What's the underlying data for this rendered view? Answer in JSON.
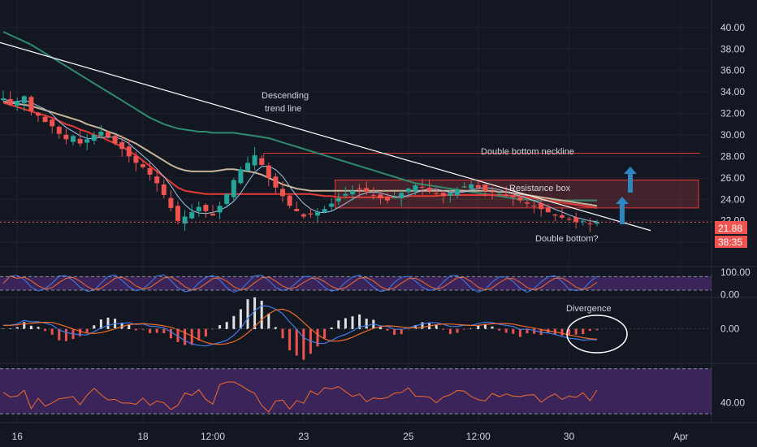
{
  "chart_data": {
    "type": "candlestick",
    "main_panel": {
      "ylim": [
        18.5,
        41.5
      ],
      "yticks": [
        "20.00",
        "22.00",
        "24.00",
        "26.00",
        "28.00",
        "30.00",
        "32.00",
        "34.00",
        "36.00",
        "38.00",
        "40.00"
      ],
      "last_price": "21.88",
      "countdown": "38:35",
      "annotations": {
        "descending_line1": "Descending",
        "descending_line2": "trend line",
        "neckline": "Double bottom neckline",
        "resistance": "Resistance box",
        "double_bottom": "Double bottom?"
      },
      "neckline_price": 28.3,
      "resistance_box": [
        23.2,
        25.8
      ],
      "trend_line": [
        [
          0,
          38.6
        ],
        [
          105,
          21.1
        ]
      ],
      "close": [
        33.4,
        32.8,
        33.1,
        33.6,
        32.2,
        31.8,
        31.2,
        30.8,
        30.1,
        29.6,
        29.9,
        29.2,
        29.6,
        30.0,
        30.3,
        29.8,
        29.2,
        28.7,
        28.0,
        27.4,
        27.0,
        26.3,
        25.5,
        24.4,
        23.2,
        22.0,
        22.4,
        22.8,
        23.3,
        22.9,
        22.5,
        23.4,
        24.5,
        25.8,
        26.8,
        27.4,
        28.1,
        27.2,
        26.0,
        25.1,
        24.3,
        23.4,
        22.9,
        22.4,
        22.6,
        22.8,
        23.1,
        23.6,
        24.1,
        24.5,
        24.8,
        25.0,
        24.7,
        24.4,
        24.1,
        23.9,
        24.2,
        24.6,
        25.0,
        25.3,
        25.1,
        24.8,
        24.5,
        24.3,
        24.6,
        24.9,
        25.2,
        25.4,
        25.1,
        24.8,
        24.7,
        24.5,
        24.3,
        24.2,
        23.9,
        23.6,
        23.4,
        23.1,
        22.8,
        22.5,
        22.3,
        22.1,
        21.9,
        22.0,
        21.7,
        21.9
      ],
      "ma_red": [
        33.0,
        32.8,
        32.6,
        32.4,
        32.2,
        32.0,
        31.8,
        31.6,
        31.3,
        31.0,
        30.8,
        30.5,
        30.3,
        30.0,
        29.8,
        29.5,
        29.2,
        28.9,
        28.5,
        28.1,
        27.6,
        27.1,
        26.6,
        26.1,
        25.6,
        25.1,
        24.8,
        24.7,
        24.6,
        24.5,
        24.5,
        24.5,
        24.5,
        24.5,
        24.5,
        24.5,
        24.5,
        24.5,
        24.5,
        24.5,
        24.5,
        24.5,
        24.5,
        24.5,
        24.5,
        24.4,
        24.3,
        24.3,
        24.2,
        24.2,
        24.2,
        24.2,
        24.2,
        24.2,
        24.2,
        24.2,
        24.2,
        24.2,
        24.3,
        24.3,
        24.3,
        24.3,
        24.3,
        24.4,
        24.4,
        24.4,
        24.4,
        24.4,
        24.4,
        24.4,
        24.4,
        24.4,
        24.4,
        24.3,
        24.3,
        24.2,
        24.1,
        24.0,
        23.9,
        23.8,
        23.7,
        23.6,
        23.5,
        23.4,
        23.3,
        23.2
      ],
      "ma_tan": [
        33.1,
        33.0,
        32.9,
        32.8,
        32.7,
        32.5,
        32.3,
        32.1,
        31.9,
        31.7,
        31.5,
        31.3,
        31.0,
        30.8,
        30.6,
        30.3,
        30.1,
        29.8,
        29.5,
        29.2,
        28.8,
        28.4,
        28.0,
        27.6,
        27.2,
        26.9,
        26.7,
        26.6,
        26.6,
        26.6,
        26.6,
        26.7,
        26.8,
        26.8,
        26.7,
        26.6,
        26.5,
        26.3,
        26.0,
        25.7,
        25.4,
        25.2,
        25.0,
        24.9,
        24.8,
        24.8,
        24.8,
        24.8,
        24.8,
        24.8,
        24.8,
        24.8,
        24.8,
        24.8,
        24.8,
        24.8,
        24.8,
        24.8,
        24.8,
        24.8,
        24.8,
        24.8,
        24.8,
        24.8,
        24.8,
        24.8,
        24.8,
        24.8,
        24.8,
        24.8,
        24.8,
        24.7,
        24.7,
        24.6,
        24.5,
        24.4,
        24.3,
        24.2,
        24.1,
        24.0,
        23.9,
        23.8,
        23.7,
        23.6,
        23.5,
        23.4
      ],
      "ma_green": [
        39.6,
        39.3,
        39.0,
        38.7,
        38.4,
        38.0,
        37.6,
        37.2,
        36.8,
        36.4,
        36.0,
        35.6,
        35.2,
        34.8,
        34.4,
        34.0,
        33.6,
        33.2,
        32.8,
        32.4,
        32.0,
        31.6,
        31.3,
        31.0,
        30.8,
        30.6,
        30.5,
        30.4,
        30.3,
        30.3,
        30.2,
        30.2,
        30.2,
        30.2,
        30.1,
        30.0,
        29.9,
        29.8,
        29.7,
        29.5,
        29.3,
        29.1,
        28.9,
        28.7,
        28.5,
        28.3,
        28.1,
        27.9,
        27.7,
        27.5,
        27.3,
        27.1,
        26.9,
        26.7,
        26.5,
        26.3,
        26.1,
        25.9,
        25.7,
        25.5,
        25.4,
        25.3,
        25.2,
        25.1,
        25.0,
        24.9,
        24.8,
        24.7,
        24.6,
        24.5,
        24.4,
        24.3,
        24.2,
        24.1,
        24.0,
        24.0,
        23.9,
        23.9,
        23.9,
        23.9,
        23.9,
        23.9,
        23.9,
        23.9,
        23.9,
        23.9
      ]
    },
    "stoch_panel": {
      "ylim": [
        -5,
        110
      ],
      "yticks": [
        "100.00",
        "0.00"
      ],
      "band": [
        20,
        80
      ]
    },
    "macd_panel": {
      "ylim": [
        -1.6,
        1.4
      ],
      "yticks": [
        "0.00"
      ],
      "annotation": "Divergence"
    },
    "rsi_panel": {
      "ylim": [
        25,
        72
      ],
      "yticks": [
        "40.00"
      ],
      "band": [
        30,
        70
      ]
    },
    "x_axis": {
      "labels": [
        {
          "label": "16",
          "i": 2
        },
        {
          "label": "18",
          "i": 20
        },
        {
          "label": "12:00",
          "i": 30
        },
        {
          "label": "23",
          "i": 43
        },
        {
          "label": "25",
          "i": 58
        },
        {
          "label": "12:00",
          "i": 68
        },
        {
          "label": "30",
          "i": 81
        },
        {
          "label": "Apr",
          "i": 97
        }
      ]
    },
    "colors": {
      "background": "#131722",
      "up": "#26a69a",
      "down": "#ef5350",
      "ma_red": "#e53935",
      "ma_tan": "#c8b49a",
      "ma_green": "#2e8b6e",
      "trend": "#ffffff",
      "band_fill": "#4a2a6e",
      "rsi": "#f26b2a",
      "macd": "#3f7ee8",
      "signal": "#f26b2a",
      "arrow": "#2e86c1",
      "price_line": "#ef5350"
    }
  }
}
